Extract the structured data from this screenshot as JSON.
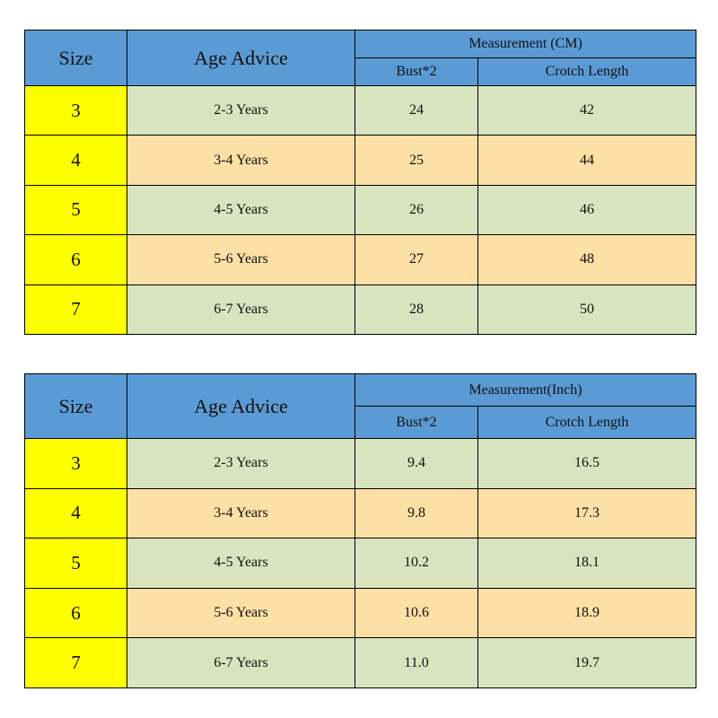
{
  "tables": [
    {
      "header": {
        "size": "Size",
        "age": "Age Advice",
        "measurement": "Measurement (CM)",
        "columns": [
          "Bust*2",
          "Crotch Length"
        ]
      },
      "rows": [
        [
          "3",
          "2-3 Years",
          "24",
          "42"
        ],
        [
          "4",
          "3-4 Years",
          "25",
          "44"
        ],
        [
          "5",
          "4-5 Years",
          "26",
          "46"
        ],
        [
          "6",
          "5-6 Years",
          "27",
          "48"
        ],
        [
          "7",
          "6-7 Years",
          "28",
          "50"
        ]
      ]
    },
    {
      "header": {
        "size": "Size",
        "age": "Age Advice",
        "measurement": "Measurement(Inch)",
        "columns": [
          "Bust*2",
          "Crotch Length"
        ]
      },
      "rows": [
        [
          "3",
          "2-3 Years",
          "9.4",
          "16.5"
        ],
        [
          "4",
          "3-4 Years",
          "9.8",
          "17.3"
        ],
        [
          "5",
          "4-5 Years",
          "10.2",
          "18.1"
        ],
        [
          "6",
          "5-6 Years",
          "10.6",
          "18.9"
        ],
        [
          "7",
          "6-7 Years",
          "11.0",
          "19.7"
        ]
      ]
    }
  ]
}
